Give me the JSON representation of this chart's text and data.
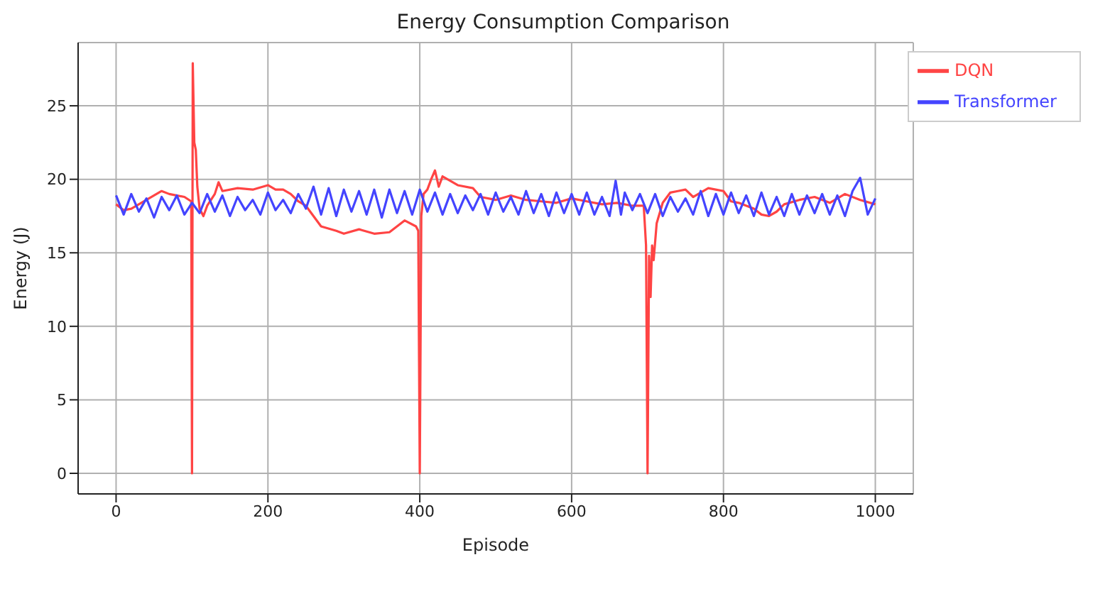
{
  "chart_data": {
    "type": "line",
    "title": "Energy Consumption Comparison",
    "xlabel": "Episode",
    "ylabel": "Energy (J)",
    "xlim": [
      -50,
      1050
    ],
    "ylim": [
      -1.4,
      29.3
    ],
    "xticks": [
      0,
      200,
      400,
      600,
      800,
      1000
    ],
    "yticks": [
      0,
      5,
      10,
      15,
      20,
      25
    ],
    "grid": true,
    "legend": "top right",
    "line_style": "solid",
    "marker": "none",
    "series": [
      {
        "name": "DQN",
        "color": "#ff4444",
        "x": [
          0,
          10,
          20,
          40,
          60,
          70,
          90,
          99,
          100,
          101,
          103,
          105,
          107,
          110,
          115,
          120,
          130,
          135,
          140,
          160,
          180,
          200,
          210,
          220,
          230,
          240,
          250,
          260,
          270,
          290,
          300,
          320,
          340,
          360,
          380,
          395,
          398,
          400,
          402,
          405,
          410,
          415,
          420,
          425,
          430,
          450,
          470,
          480,
          500,
          520,
          540,
          560,
          580,
          600,
          620,
          640,
          660,
          680,
          695,
          698,
          700,
          702,
          704,
          706,
          708,
          712,
          720,
          730,
          740,
          750,
          760,
          780,
          800,
          810,
          820,
          840,
          850,
          860,
          870,
          880,
          900,
          920,
          940,
          960,
          980,
          1000
        ],
        "values": [
          18.3,
          17.9,
          18.0,
          18.6,
          19.2,
          19.0,
          18.8,
          18.5,
          0,
          27.9,
          22.5,
          22.0,
          19.5,
          18.0,
          17.5,
          18.2,
          19.0,
          19.8,
          19.2,
          19.4,
          19.3,
          19.6,
          19.3,
          19.3,
          19.0,
          18.5,
          18.2,
          17.5,
          16.8,
          16.5,
          16.3,
          16.6,
          16.3,
          16.4,
          17.2,
          16.8,
          16.5,
          0,
          17.5,
          19.0,
          19.3,
          20.0,
          20.6,
          19.5,
          20.2,
          19.6,
          19.4,
          18.8,
          18.6,
          18.9,
          18.6,
          18.5,
          18.4,
          18.7,
          18.5,
          18.3,
          18.4,
          18.2,
          18.2,
          15.5,
          0,
          14.8,
          12.0,
          15.5,
          14.5,
          17.0,
          18.4,
          19.1,
          19.2,
          19.3,
          18.8,
          19.4,
          19.2,
          18.5,
          18.4,
          18.0,
          17.6,
          17.5,
          17.8,
          18.3,
          18.6,
          18.8,
          18.4,
          19.0,
          18.6,
          18.3
        ]
      },
      {
        "name": "Transformer",
        "color": "#4444ff",
        "x": [
          0,
          10,
          20,
          30,
          40,
          50,
          60,
          70,
          80,
          90,
          100,
          110,
          120,
          130,
          140,
          150,
          160,
          170,
          180,
          190,
          200,
          210,
          220,
          230,
          240,
          250,
          260,
          270,
          280,
          290,
          300,
          310,
          320,
          330,
          340,
          350,
          360,
          370,
          380,
          390,
          400,
          410,
          420,
          430,
          440,
          450,
          460,
          470,
          480,
          490,
          500,
          510,
          520,
          530,
          540,
          550,
          560,
          570,
          580,
          590,
          600,
          610,
          620,
          630,
          640,
          650,
          658,
          665,
          670,
          680,
          690,
          700,
          710,
          720,
          730,
          740,
          750,
          760,
          770,
          780,
          790,
          800,
          810,
          820,
          830,
          840,
          850,
          860,
          870,
          880,
          890,
          900,
          910,
          920,
          930,
          940,
          950,
          960,
          970,
          980,
          990,
          1000
        ],
        "values": [
          18.9,
          17.6,
          19.0,
          17.8,
          18.7,
          17.4,
          18.8,
          17.9,
          18.9,
          17.6,
          18.4,
          17.7,
          19.0,
          17.8,
          18.9,
          17.5,
          18.8,
          17.9,
          18.6,
          17.6,
          19.1,
          17.9,
          18.6,
          17.7,
          19.0,
          18.0,
          19.5,
          17.6,
          19.4,
          17.5,
          19.3,
          17.8,
          19.2,
          17.6,
          19.3,
          17.4,
          19.3,
          17.7,
          19.2,
          17.6,
          19.3,
          17.8,
          19.1,
          17.6,
          19.0,
          17.7,
          18.9,
          17.9,
          19.0,
          17.6,
          19.1,
          17.8,
          18.8,
          17.6,
          19.2,
          17.7,
          19.0,
          17.5,
          19.1,
          17.7,
          19.0,
          17.6,
          19.1,
          17.6,
          18.8,
          17.5,
          19.9,
          17.6,
          19.1,
          17.9,
          19.0,
          17.7,
          19.0,
          17.5,
          18.8,
          17.8,
          18.7,
          17.6,
          19.2,
          17.5,
          19.0,
          17.6,
          19.1,
          17.7,
          18.9,
          17.5,
          19.1,
          17.6,
          18.8,
          17.5,
          19.0,
          17.6,
          18.9,
          17.7,
          19.0,
          17.6,
          18.9,
          17.5,
          19.2,
          20.1,
          17.6,
          18.7
        ]
      }
    ]
  }
}
